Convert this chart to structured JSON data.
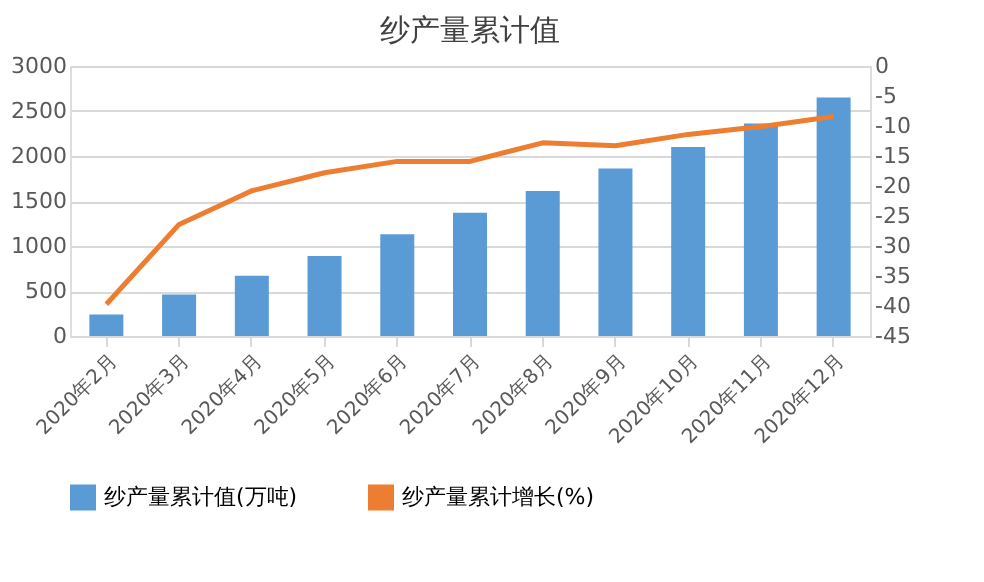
{
  "chart_data": {
    "type": "bar",
    "title": "纱产量累计值",
    "categories": [
      "2020年2月",
      "2020年3月",
      "2020年4月",
      "2020年5月",
      "2020年6月",
      "2020年7月",
      "2020年8月",
      "2020年9月",
      "2020年10月",
      "2020年11月",
      "2020年12月"
    ],
    "series": [
      {
        "name": "纱产量累计值(万吨)",
        "color": "#5b9bd5",
        "values": [
          240,
          460,
          670,
          890,
          1130,
          1370,
          1610,
          1860,
          2100,
          2360,
          2650
        ]
      },
      {
        "name": "纱产量累计增长(%)",
        "color": "#ed7d31",
        "type": "line",
        "axis": "y2",
        "values": [
          -39.7,
          -26.4,
          -20.8,
          -17.8,
          -15.9,
          -15.9,
          -12.8,
          -13.3,
          -11.4,
          -10.1,
          -8.4
        ]
      }
    ],
    "ylim": [
      0,
      3000
    ],
    "yticks": [
      0,
      500,
      1000,
      1500,
      2000,
      2500,
      3000
    ],
    "y2lim": [
      -45,
      0
    ],
    "y2ticks": [
      -45,
      -40,
      -35,
      -30,
      -25,
      -20,
      -15,
      -10,
      -5,
      0
    ],
    "grid": "y",
    "legend": "bottom",
    "marker": "none",
    "line_style": "solid"
  }
}
